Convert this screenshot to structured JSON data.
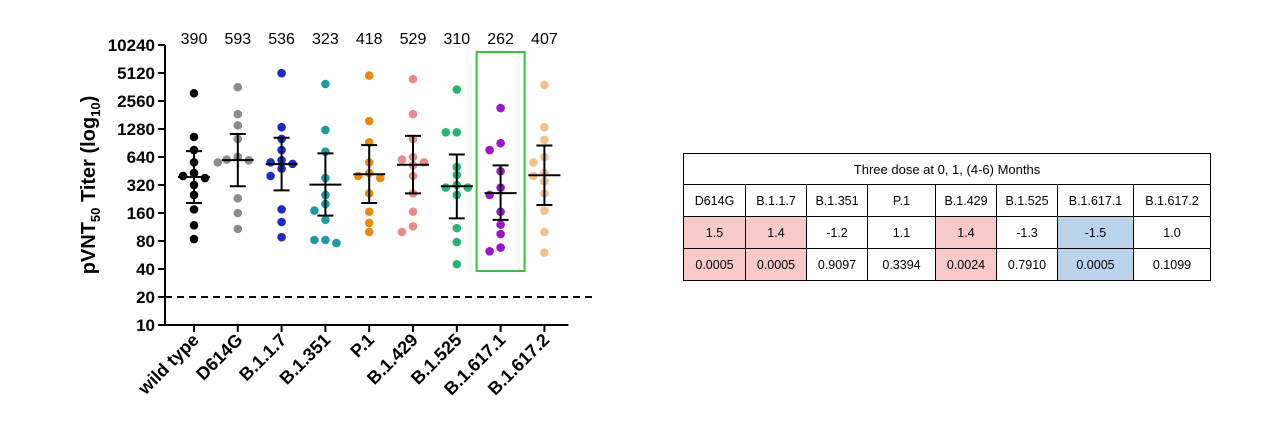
{
  "chart_data": {
    "type": "scatter",
    "ylabel": "pVNT50 Titer (log10)",
    "ylabel_parts": {
      "main": "pVNT",
      "sub1": "50",
      "mid": " Titer (log",
      "sub2": "10",
      "end": ")"
    },
    "yscale": "log2",
    "yticks": [
      10,
      20,
      40,
      80,
      160,
      320,
      640,
      1280,
      2560,
      5120,
      10240
    ],
    "ylim": [
      10,
      10240
    ],
    "threshold_line": 20,
    "categories": [
      "wild type",
      "D614G",
      "B.1.1.7",
      "B.1.351",
      "P.1",
      "B.1.429",
      "B.1.525",
      "B.1.617.1",
      "B.1.617.2"
    ],
    "gmt_labels": [
      "390",
      "593",
      "536",
      "323",
      "418",
      "529",
      "310",
      "262",
      "407"
    ],
    "highlighted_category": "B.1.617.1",
    "series": [
      {
        "category": "wild type",
        "color": "#000000",
        "gmt": 390,
        "ci": [
          205,
          740
        ],
        "points": [
          3100,
          1050,
          760,
          560,
          430,
          400,
          380,
          320,
          250,
          175,
          118,
          84
        ]
      },
      {
        "category": "D614G",
        "color": "#8c8c8c",
        "gmt": 593,
        "ci": [
          310,
          1130
        ],
        "points": [
          3600,
          1850,
          1400,
          1000,
          640,
          600,
          590,
          560,
          230,
          160,
          108
        ]
      },
      {
        "category": "B.1.1.7",
        "color": "#1f29c4",
        "gmt": 536,
        "ci": [
          280,
          1030
        ],
        "points": [
          5100,
          1340,
          1000,
          760,
          590,
          560,
          540,
          480,
          400,
          175,
          128,
          88
        ]
      },
      {
        "category": "B.1.351",
        "color": "#1f9aa5",
        "gmt": 323,
        "ci": [
          150,
          700
        ],
        "points": [
          3900,
          1250,
          730,
          380,
          250,
          200,
          170,
          135,
          82,
          82,
          76
        ]
      },
      {
        "category": "P.1",
        "color": "#e8890c",
        "gmt": 418,
        "ci": [
          205,
          860
        ],
        "points": [
          4800,
          1560,
          920,
          560,
          430,
          400,
          380,
          260,
          165,
          125,
          100
        ]
      },
      {
        "category": "B.1.429",
        "color": "#e98b8b",
        "gmt": 529,
        "ci": [
          260,
          1080
        ],
        "points": [
          4400,
          1850,
          1000,
          640,
          600,
          560,
          520,
          400,
          260,
          165,
          115,
          100
        ]
      },
      {
        "category": "B.1.525",
        "color": "#27b477",
        "gmt": 310,
        "ci": [
          140,
          680
        ],
        "points": [
          3400,
          1180,
          1180,
          500,
          410,
          320,
          300,
          300,
          250,
          110,
          78,
          45
        ]
      },
      {
        "category": "B.1.617.1",
        "color": "#9b16c9",
        "gmt": 262,
        "ci": [
          135,
          520
        ],
        "points": [
          2150,
          900,
          760,
          450,
          300,
          250,
          165,
          120,
          95,
          68,
          62
        ]
      },
      {
        "category": "B.1.617.2",
        "color": "#f3c08e",
        "gmt": 407,
        "ci": [
          195,
          850
        ],
        "points": [
          3800,
          1340,
          980,
          640,
          560,
          430,
          400,
          350,
          260,
          170,
          100,
          60
        ]
      }
    ]
  },
  "table": {
    "title": "Three dose at 0, 1, (4-6) Months",
    "headers": [
      "D614G",
      "B.1.1.7",
      "B.1.351",
      "P.1",
      "B.1.429",
      "B.1.525",
      "B.1.617.1",
      "B.1.617.2"
    ],
    "fold_change": [
      "1.5",
      "1.4",
      "-1.2",
      "1.1",
      "1.4",
      "-1.3",
      "-1.5",
      "1.0"
    ],
    "p_values": [
      "0.0005",
      "0.0005",
      "0.9097",
      "0.3394",
      "0.0024",
      "0.7910",
      "0.0005",
      "0.1099"
    ],
    "fold_highlight": [
      "pos",
      "pos",
      "",
      "",
      "pos",
      "",
      "neg",
      ""
    ],
    "p_highlight": [
      "pos",
      "pos",
      "",
      "",
      "pos",
      "",
      "neg",
      ""
    ],
    "colors": {
      "positive": "#f7caca",
      "negative": "#bcd3ec"
    }
  }
}
